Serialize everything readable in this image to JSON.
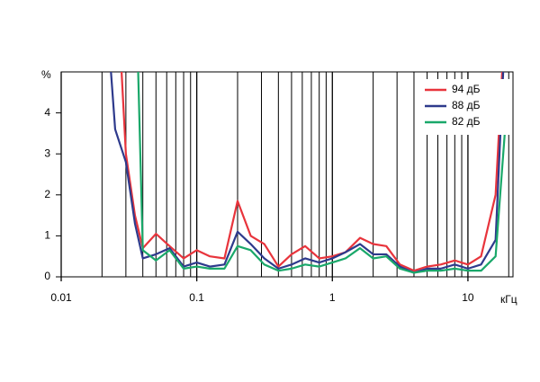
{
  "chart_data": {
    "type": "line",
    "y_label": "%",
    "x_label": "кГц",
    "log_x": true,
    "x": [
      0.02,
      0.025,
      0.03,
      0.035,
      0.04,
      0.05,
      0.063,
      0.08,
      0.1,
      0.125,
      0.16,
      0.2,
      0.25,
      0.315,
      0.4,
      0.5,
      0.63,
      0.8,
      1,
      1.25,
      1.6,
      2,
      2.5,
      3.15,
      4,
      5,
      6.3,
      8,
      10,
      12.5,
      16,
      20
    ],
    "series": [
      {
        "name": "94 дБ",
        "color": "#e8343c",
        "values": [
          null,
          8,
          3,
          1.5,
          0.7,
          1.05,
          0.75,
          0.45,
          0.65,
          0.5,
          0.45,
          1.85,
          1.0,
          0.8,
          0.25,
          0.55,
          0.75,
          0.45,
          0.5,
          0.6,
          0.95,
          0.8,
          0.75,
          0.3,
          0.15,
          0.25,
          0.3,
          0.4,
          0.3,
          0.5,
          2.0,
          8
        ]
      },
      {
        "name": "88 дБ",
        "color": "#2e3a8c",
        "values": [
          8,
          3.6,
          2.8,
          1.3,
          0.45,
          0.55,
          0.7,
          0.25,
          0.35,
          0.25,
          0.3,
          1.1,
          0.8,
          0.45,
          0.2,
          0.3,
          0.45,
          0.35,
          0.45,
          0.6,
          0.8,
          0.55,
          0.55,
          0.25,
          0.1,
          0.2,
          0.2,
          0.3,
          0.2,
          0.3,
          0.9,
          8
        ]
      },
      {
        "name": "82 дБ",
        "color": "#1aa86a",
        "values": [
          null,
          null,
          null,
          8,
          0.65,
          0.4,
          0.65,
          0.2,
          0.25,
          0.2,
          0.2,
          0.75,
          0.65,
          0.3,
          0.15,
          0.2,
          0.3,
          0.25,
          0.35,
          0.45,
          0.7,
          0.45,
          0.5,
          0.2,
          0.1,
          0.15,
          0.15,
          0.2,
          0.15,
          0.15,
          0.5,
          4.8
        ]
      }
    ],
    "xlim": [
      0.01,
      21.5
    ],
    "xticks": [
      {
        "value": 0.01,
        "label": "0.01"
      },
      {
        "value": 0.1,
        "label": "0.1"
      },
      1,
      10
    ],
    "ylim": [
      0,
      5
    ],
    "yticks": [
      0,
      1,
      2,
      3,
      4
    ],
    "minor_grid": true,
    "legend": "top-right"
  }
}
